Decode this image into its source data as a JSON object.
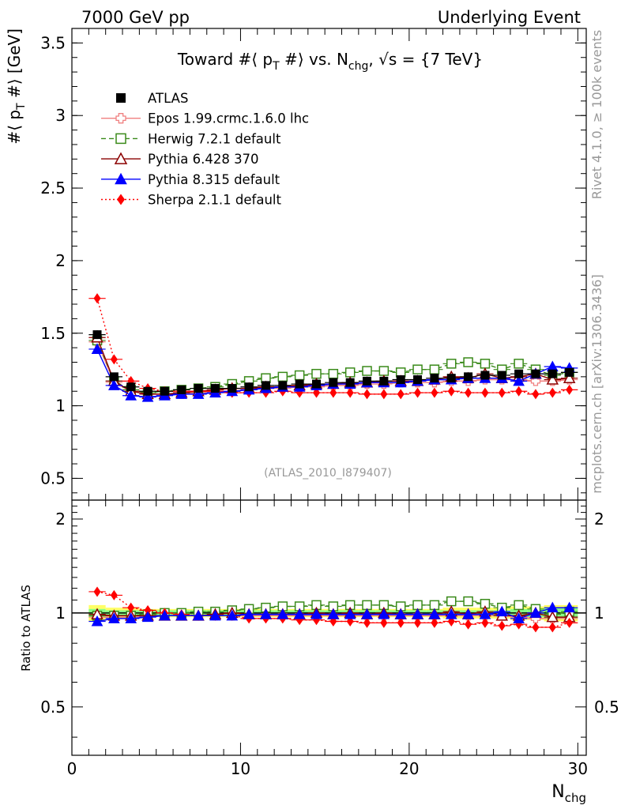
{
  "header": {
    "left": "7000 GeV pp",
    "right": "Underlying Event"
  },
  "side_labels": {
    "rivet": "Rivet 4.1.0, ≥ 100k events",
    "mcplots": "mcplots.cern.ch [arXiv:1306.3436]"
  },
  "colors": {
    "ATLAS": "#000000",
    "Epos": "#f08080",
    "Herwig": "#3a8a1a",
    "Pythia6": "#8b0000",
    "Pythia8": "#0000ff",
    "Sherpa": "#ff0000",
    "band_inner": "#88ff88",
    "band_outer": "#ffff66"
  },
  "chart_data": [
    {
      "type": "scatter",
      "panel": "main",
      "title": "Toward #⟨ p_T #⟩ vs. N_chg, √s = {7 TeV}",
      "title_parts": {
        "lead": "Toward #⟨ p",
        "sub1": "T",
        "mid": " #⟩ vs. N",
        "sub2": "chg",
        "tail": ", √s = {7 TeV}"
      },
      "ylabel": "#⟨ p_T #⟩ [GeV]",
      "ylabel_parts": {
        "lead": "#⟨ p",
        "sub": "T",
        "tail": " #⟩ [GeV]"
      },
      "xlabel": "",
      "xlim": [
        0,
        30.5
      ],
      "ylim": [
        0.35,
        3.6
      ],
      "y_ticks": [
        0.5,
        1,
        1.5,
        2,
        2.5,
        3,
        3.5
      ],
      "y_tick_labels": [
        "0.5",
        "1",
        "1.5",
        "2",
        "2.5",
        "3",
        "3.5"
      ],
      "watermark": "(ATLAS_2010_I879407)",
      "legend_position": "top-left",
      "x": [
        1.5,
        2.5,
        3.5,
        4.5,
        5.5,
        6.5,
        7.5,
        8.5,
        9.5,
        10.5,
        11.5,
        12.5,
        13.5,
        14.5,
        15.5,
        16.5,
        17.5,
        18.5,
        19.5,
        20.5,
        21.5,
        22.5,
        23.5,
        24.5,
        25.5,
        26.5,
        27.5,
        28.5,
        29.5
      ],
      "series": [
        {
          "name": "ATLAS",
          "key": "ATLAS",
          "marker": "square",
          "line": "none",
          "values": [
            1.49,
            1.2,
            1.13,
            1.1,
            1.1,
            1.11,
            1.12,
            1.12,
            1.12,
            1.13,
            1.14,
            1.14,
            1.15,
            1.15,
            1.16,
            1.16,
            1.17,
            1.17,
            1.18,
            1.18,
            1.19,
            1.19,
            1.2,
            1.21,
            1.21,
            1.22,
            1.22,
            1.22,
            1.23
          ],
          "errors": [
            0.03,
            0.02,
            0.01,
            0.01,
            0.01,
            0.01,
            0.01,
            0.01,
            0.01,
            0.01,
            0.01,
            0.01,
            0.01,
            0.01,
            0.01,
            0.01,
            0.01,
            0.01,
            0.01,
            0.01,
            0.01,
            0.01,
            0.01,
            0.01,
            0.01,
            0.01,
            0.02,
            0.02,
            0.03
          ]
        },
        {
          "name": "Epos 1.99.crmc.1.6.0 lhc",
          "key": "Epos",
          "marker": "open-cross",
          "line": "solid",
          "values": [
            1.44,
            1.16,
            1.1,
            1.08,
            1.08,
            1.08,
            1.09,
            1.1,
            1.1,
            1.11,
            1.12,
            1.12,
            1.13,
            1.13,
            1.14,
            1.14,
            1.15,
            1.15,
            1.16,
            1.16,
            1.16,
            1.17,
            1.17,
            1.18,
            1.18,
            1.18,
            1.17,
            1.17,
            1.18
          ],
          "errors": [
            0.01,
            0.01,
            0.01,
            0.01,
            0.01,
            0.01,
            0.01,
            0.01,
            0.01,
            0.01,
            0.01,
            0.01,
            0.01,
            0.01,
            0.01,
            0.01,
            0.01,
            0.01,
            0.01,
            0.01,
            0.01,
            0.01,
            0.01,
            0.01,
            0.01,
            0.02,
            0.02,
            0.02,
            0.02
          ]
        },
        {
          "name": "Herwig 7.2.1 default",
          "key": "Herwig",
          "marker": "open-square",
          "line": "dashed",
          "values": [
            1.45,
            1.17,
            1.11,
            1.09,
            1.1,
            1.11,
            1.12,
            1.13,
            1.15,
            1.17,
            1.19,
            1.2,
            1.21,
            1.22,
            1.22,
            1.23,
            1.24,
            1.24,
            1.23,
            1.25,
            1.25,
            1.29,
            1.3,
            1.29,
            1.25,
            1.29,
            1.25,
            1.21,
            1.23
          ],
          "errors": [
            0.01,
            0.01,
            0.01,
            0.01,
            0.01,
            0.01,
            0.01,
            0.01,
            0.01,
            0.01,
            0.01,
            0.01,
            0.01,
            0.01,
            0.01,
            0.01,
            0.01,
            0.01,
            0.01,
            0.01,
            0.01,
            0.02,
            0.02,
            0.02,
            0.02,
            0.02,
            0.03,
            0.03,
            0.03
          ]
        },
        {
          "name": "Pythia 6.428 370",
          "key": "Pythia6",
          "marker": "open-triangle",
          "line": "solid",
          "values": [
            1.47,
            1.17,
            1.1,
            1.08,
            1.08,
            1.09,
            1.1,
            1.11,
            1.12,
            1.12,
            1.13,
            1.13,
            1.14,
            1.15,
            1.15,
            1.16,
            1.16,
            1.17,
            1.17,
            1.17,
            1.18,
            1.2,
            1.19,
            1.22,
            1.19,
            1.2,
            1.22,
            1.18,
            1.19
          ],
          "errors": [
            0.01,
            0.01,
            0.01,
            0.01,
            0.01,
            0.01,
            0.01,
            0.01,
            0.01,
            0.01,
            0.01,
            0.01,
            0.01,
            0.01,
            0.01,
            0.01,
            0.01,
            0.01,
            0.01,
            0.01,
            0.01,
            0.01,
            0.02,
            0.02,
            0.02,
            0.02,
            0.02,
            0.03,
            0.03
          ]
        },
        {
          "name": "Pythia 8.315 default",
          "key": "Pythia8",
          "marker": "triangle",
          "line": "solid",
          "values": [
            1.39,
            1.14,
            1.07,
            1.06,
            1.07,
            1.08,
            1.08,
            1.09,
            1.1,
            1.11,
            1.12,
            1.13,
            1.13,
            1.14,
            1.15,
            1.15,
            1.16,
            1.16,
            1.16,
            1.17,
            1.18,
            1.18,
            1.19,
            1.19,
            1.19,
            1.17,
            1.22,
            1.27,
            1.26
          ],
          "errors": [
            0.01,
            0.01,
            0.01,
            0.01,
            0.01,
            0.01,
            0.01,
            0.01,
            0.01,
            0.01,
            0.01,
            0.01,
            0.01,
            0.01,
            0.01,
            0.01,
            0.01,
            0.01,
            0.01,
            0.01,
            0.01,
            0.01,
            0.01,
            0.02,
            0.02,
            0.02,
            0.03,
            0.03,
            0.03
          ]
        },
        {
          "name": "Sherpa 2.1.1 default",
          "key": "Sherpa",
          "marker": "diamond",
          "line": "dotted",
          "values": [
            1.74,
            1.32,
            1.17,
            1.12,
            1.1,
            1.1,
            1.1,
            1.1,
            1.09,
            1.09,
            1.09,
            1.1,
            1.09,
            1.09,
            1.09,
            1.09,
            1.08,
            1.08,
            1.08,
            1.09,
            1.09,
            1.1,
            1.09,
            1.09,
            1.09,
            1.1,
            1.08,
            1.09,
            1.11
          ],
          "errors": [
            0.01,
            0.01,
            0.01,
            0.01,
            0.01,
            0.01,
            0.01,
            0.01,
            0.01,
            0.01,
            0.01,
            0.01,
            0.01,
            0.01,
            0.01,
            0.01,
            0.01,
            0.01,
            0.01,
            0.01,
            0.01,
            0.01,
            0.01,
            0.02,
            0.02,
            0.02,
            0.02,
            0.02,
            0.02
          ]
        }
      ]
    },
    {
      "type": "scatter",
      "panel": "ratio",
      "title": "",
      "ylabel": "Ratio to ATLAS",
      "xlabel": "N_chg",
      "xlabel_parts": {
        "lead": "N",
        "sub": "chg"
      },
      "xlim": [
        0,
        30.5
      ],
      "ylim": [
        0.35,
        2.3
      ],
      "x_ticks": [
        0,
        10,
        20,
        30
      ],
      "x_tick_labels": [
        "0",
        "10",
        "20",
        "30"
      ],
      "y_ticks": [
        0.5,
        1,
        2
      ],
      "y_tick_labels": [
        "0.5",
        "1",
        "2"
      ],
      "reference_line": 1,
      "band_inner_rel": [
        0.03,
        0.02,
        0.02,
        0.02,
        0.02,
        0.02,
        0.02,
        0.02,
        0.02,
        0.02,
        0.02,
        0.02,
        0.02,
        0.02,
        0.02,
        0.02,
        0.02,
        0.02,
        0.02,
        0.02,
        0.02,
        0.02,
        0.02,
        0.02,
        0.02,
        0.03,
        0.03,
        0.04,
        0.04
      ],
      "band_outer_rel": [
        0.06,
        0.04,
        0.04,
        0.03,
        0.03,
        0.03,
        0.03,
        0.03,
        0.03,
        0.03,
        0.03,
        0.03,
        0.03,
        0.03,
        0.03,
        0.03,
        0.03,
        0.03,
        0.03,
        0.03,
        0.03,
        0.04,
        0.04,
        0.04,
        0.04,
        0.05,
        0.05,
        0.06,
        0.06
      ],
      "ratio_series": [
        {
          "name": "Epos 1.99.crmc.1.6.0 lhc",
          "key": "Epos",
          "marker": "open-cross",
          "line": "solid",
          "values": [
            0.97,
            0.97,
            0.97,
            0.98,
            0.98,
            0.98,
            0.98,
            0.98,
            0.98,
            0.98,
            0.98,
            0.98,
            0.98,
            0.98,
            0.98,
            0.98,
            0.98,
            0.98,
            0.98,
            0.98,
            0.98,
            0.98,
            0.98,
            0.98,
            0.98,
            0.97,
            0.96,
            0.96,
            0.96
          ]
        },
        {
          "name": "Herwig 7.2.1 default",
          "key": "Herwig",
          "marker": "open-square",
          "line": "dashed",
          "values": [
            0.98,
            0.98,
            0.98,
            0.99,
            1.0,
            1.0,
            1.01,
            1.01,
            1.02,
            1.03,
            1.04,
            1.05,
            1.05,
            1.06,
            1.05,
            1.06,
            1.06,
            1.06,
            1.05,
            1.06,
            1.06,
            1.09,
            1.09,
            1.07,
            1.04,
            1.06,
            1.03,
            0.99,
            1.01
          ]
        },
        {
          "name": "Pythia 6.428 370",
          "key": "Pythia6",
          "marker": "open-triangle",
          "line": "solid",
          "values": [
            0.99,
            0.98,
            0.98,
            0.98,
            0.98,
            0.98,
            0.98,
            0.99,
            1.0,
            0.99,
            0.99,
            0.99,
            0.99,
            1.0,
            0.99,
            1.0,
            0.99,
            1.0,
            0.99,
            0.99,
            0.99,
            1.01,
            0.99,
            1.01,
            0.98,
            0.98,
            1.0,
            0.97,
            0.97
          ]
        },
        {
          "name": "Pythia 8.315 default",
          "key": "Pythia8",
          "marker": "triangle",
          "line": "solid",
          "values": [
            0.94,
            0.96,
            0.96,
            0.97,
            0.98,
            0.98,
            0.98,
            0.98,
            0.98,
            0.99,
            0.99,
            0.99,
            0.99,
            0.99,
            0.99,
            0.99,
            0.99,
            0.99,
            0.99,
            0.99,
            0.99,
            0.99,
            0.99,
            0.99,
            1.01,
            0.96,
            1.0,
            1.04,
            1.04
          ]
        },
        {
          "name": "Sherpa 2.1.1 default",
          "key": "Sherpa",
          "marker": "diamond",
          "line": "dotted",
          "values": [
            1.17,
            1.14,
            1.04,
            1.02,
            1.0,
            0.99,
            0.98,
            0.98,
            0.98,
            0.96,
            0.96,
            0.96,
            0.95,
            0.95,
            0.94,
            0.94,
            0.93,
            0.93,
            0.93,
            0.93,
            0.93,
            0.94,
            0.92,
            0.93,
            0.91,
            0.92,
            0.9,
            0.9,
            0.93
          ]
        }
      ]
    }
  ]
}
